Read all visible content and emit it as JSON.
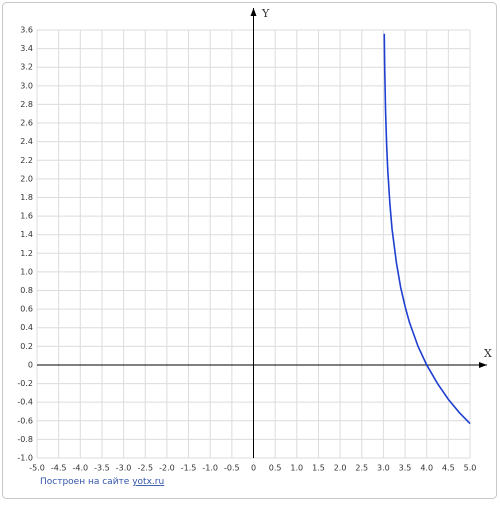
{
  "chart_data": {
    "type": "line",
    "x_label": "X",
    "y_label": "Y",
    "x": [
      3.02,
      3.03,
      3.05,
      3.075,
      3.1,
      3.15,
      3.2,
      3.3,
      3.4,
      3.5,
      3.6,
      3.8,
      4.0,
      4.25,
      4.5,
      4.75,
      5.0
    ],
    "values": [
      3.56,
      3.19,
      2.73,
      2.36,
      2.1,
      1.73,
      1.46,
      1.1,
      0.83,
      0.63,
      0.46,
      0.2,
      0,
      -0.2,
      -0.37,
      -0.51,
      -0.63
    ],
    "color": "#1f3fd0",
    "xlim": [
      -5,
      5
    ],
    "ylim": [
      -1,
      3.6
    ],
    "xticks": [
      {
        "value": -5,
        "label": "-5.0"
      },
      -4.5,
      {
        "value": -4,
        "label": "-4.0"
      },
      -3.5,
      {
        "value": -3,
        "label": "-3.0"
      },
      -2.5,
      {
        "value": -2,
        "label": "-2.0"
      },
      -1.5,
      {
        "value": -1,
        "label": "-1.0"
      },
      -0.5,
      0,
      0.5,
      {
        "value": 1,
        "label": "1.0"
      },
      1.5,
      {
        "value": 2,
        "label": "2.0"
      },
      2.5,
      {
        "value": 3,
        "label": "3.0"
      },
      3.5,
      {
        "value": 4,
        "label": "4.0"
      },
      4.5,
      {
        "value": 5,
        "label": "5.0"
      }
    ],
    "yticks": [
      {
        "value": -1,
        "label": "-1.0"
      },
      -0.8,
      -0.6,
      -0.4,
      -0.2,
      0,
      0.2,
      0.4,
      0.6,
      0.8,
      {
        "value": 1,
        "label": "1.0"
      },
      1.2,
      1.4,
      1.6,
      1.8,
      {
        "value": 2,
        "label": "2.0"
      },
      2.2,
      2.4,
      2.6,
      2.8,
      {
        "value": 3,
        "label": "3.0"
      },
      3.2,
      3.4,
      3.6
    ],
    "grid": true
  },
  "footer": {
    "text": "Построен на сайте",
    "link": "yotx.ru"
  }
}
